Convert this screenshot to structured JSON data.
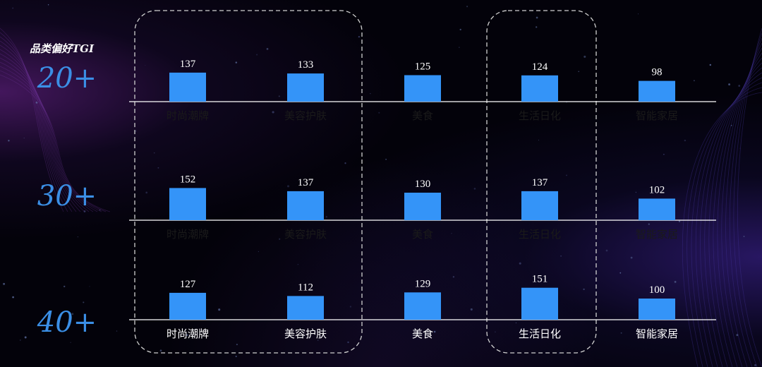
{
  "chart_data": {
    "type": "bar",
    "title": "品类偏好TGI",
    "categories": [
      "时尚潮牌",
      "美容护肤",
      "美食",
      "生活日化",
      "智能家居"
    ],
    "series": [
      {
        "name": "20+",
        "values": [
          137,
          133,
          125,
          124,
          98
        ]
      },
      {
        "name": "30+",
        "values": [
          152,
          137,
          130,
          137,
          102
        ]
      },
      {
        "name": "40+",
        "values": [
          127,
          112,
          129,
          151,
          100
        ]
      }
    ],
    "layout": "small multiples: one row per age group",
    "highlighted_categories": [
      "时尚潮牌",
      "美容护肤",
      "生活日化"
    ],
    "ylim": [
      0,
      160
    ],
    "grid": false,
    "colors": {
      "bar": "#3494f8",
      "row_label": "#3b8fe6",
      "axis": "#ffffff",
      "category_label": "#ffffff",
      "highlight_border": "#d0d0d0"
    }
  }
}
